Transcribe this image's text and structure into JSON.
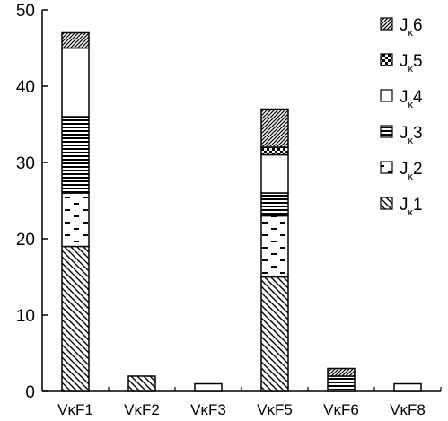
{
  "chart_data": {
    "type": "bar",
    "stacked": true,
    "categories": [
      "VκF1",
      "VκF2",
      "VκF3",
      "VκF5",
      "VκF6",
      "VκF8"
    ],
    "series": [
      {
        "name": "Jκ1",
        "values": [
          19,
          2,
          0,
          15,
          0,
          0
        ],
        "pattern": "diag-sparse"
      },
      {
        "name": "Jκ2",
        "values": [
          7,
          0,
          0,
          8,
          0,
          0
        ],
        "pattern": "dashes"
      },
      {
        "name": "Jκ3",
        "values": [
          10,
          0,
          0,
          3,
          2,
          0
        ],
        "pattern": "hlines"
      },
      {
        "name": "Jκ4",
        "values": [
          9,
          0,
          1,
          5,
          0,
          1
        ],
        "pattern": "empty"
      },
      {
        "name": "Jκ5",
        "values": [
          0,
          0,
          0,
          1,
          0,
          0
        ],
        "pattern": "checker"
      },
      {
        "name": "Jκ6",
        "values": [
          2,
          0,
          0,
          5,
          1,
          0
        ],
        "pattern": "diag-dense"
      }
    ],
    "legend_labels": [
      {
        "base": "J",
        "sub": "κ",
        "num": "6"
      },
      {
        "base": "J",
        "sub": "κ",
        "num": "5"
      },
      {
        "base": "J",
        "sub": "κ",
        "num": "4"
      },
      {
        "base": "J",
        "sub": "κ",
        "num": "3"
      },
      {
        "base": "J",
        "sub": "κ",
        "num": "2"
      },
      {
        "base": "J",
        "sub": "κ",
        "num": "1"
      }
    ],
    "yticks": [
      "0",
      "10",
      "20",
      "30",
      "40",
      "50"
    ],
    "ylim": [
      0,
      50
    ],
    "xlabel": "",
    "ylabel": "",
    "title": "",
    "legend_position": "top-right",
    "grid": false
  }
}
